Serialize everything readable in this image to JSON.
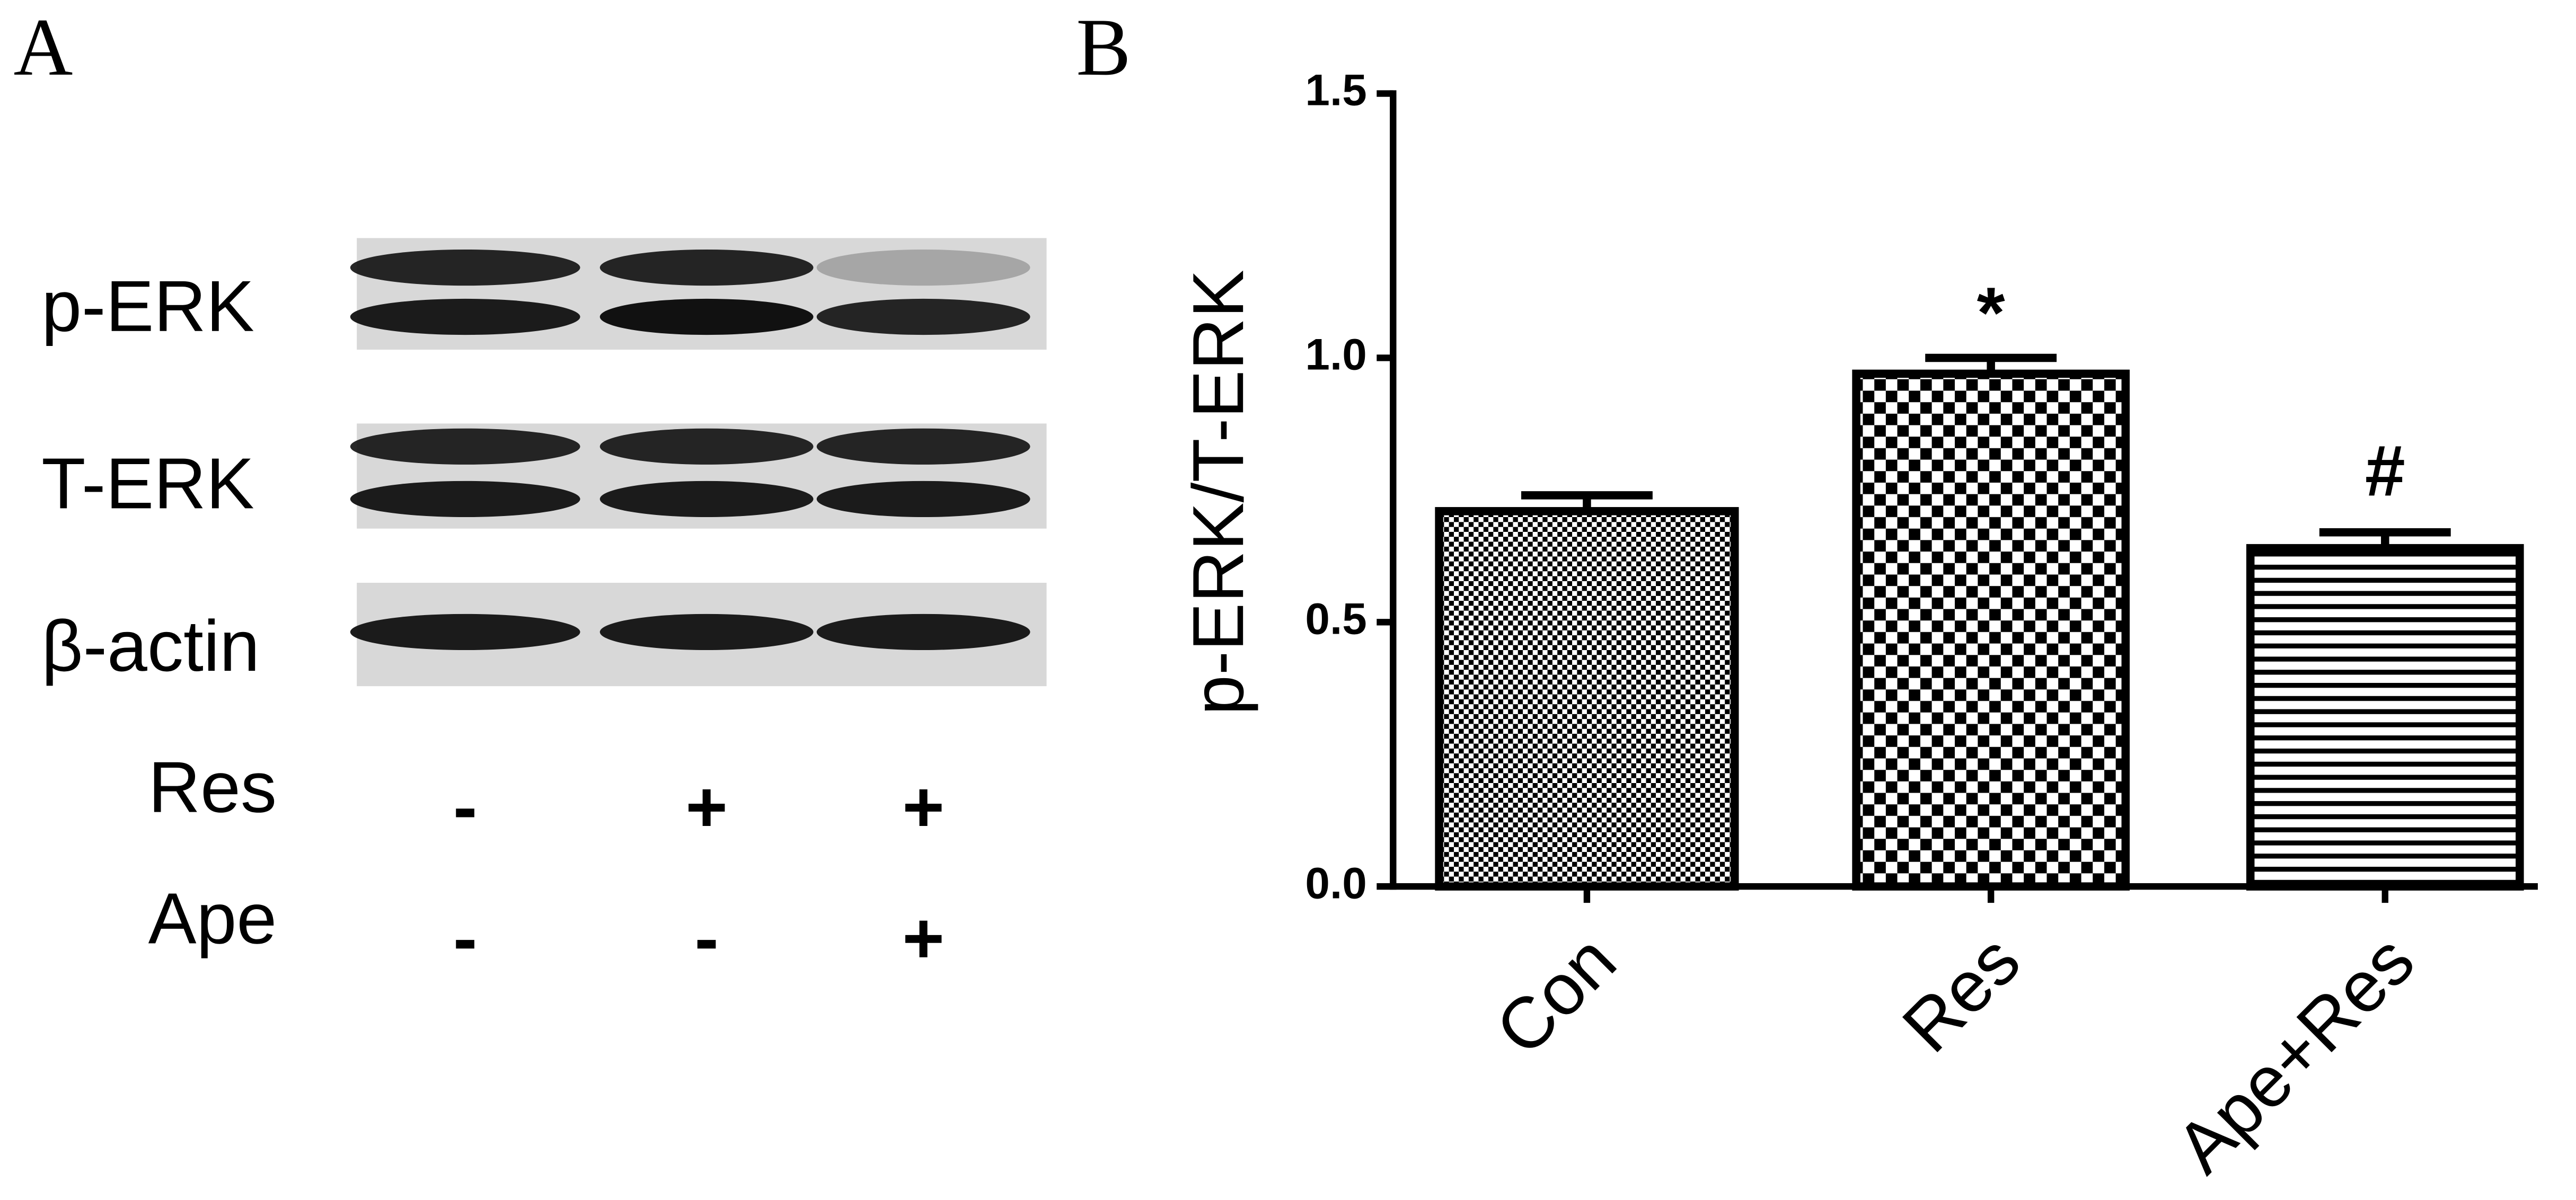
{
  "blot": {
    "panel_label": "A",
    "rows": [
      "p-ERK",
      "T-ERK",
      "β-actin"
    ],
    "treatments": [
      {
        "name": "Res",
        "signs": [
          "-",
          "+",
          "+"
        ]
      },
      {
        "name": "Ape",
        "signs": [
          "-",
          "-",
          "+"
        ]
      }
    ]
  },
  "chart_data": {
    "type": "bar",
    "panel_label": "B",
    "y_label": "p-ERK/T-ERK",
    "categories": [
      "Con",
      "Res",
      "Ape+Res"
    ],
    "values": [
      0.71,
      0.97,
      0.64
    ],
    "errors": [
      0.03,
      0.03,
      0.03
    ],
    "ylim": [
      0,
      1.5
    ],
    "yticks": [
      {
        "value": 0,
        "label": "0.0"
      },
      {
        "value": 0.5,
        "label": "0.5"
      },
      {
        "value": 1,
        "label": "1.0"
      },
      {
        "value": 1.5,
        "label": "1.5"
      }
    ],
    "annotations": [
      {
        "text": "*",
        "category": "Res"
      },
      {
        "text": "#",
        "category": "Ape+Res"
      }
    ],
    "grid": false
  }
}
